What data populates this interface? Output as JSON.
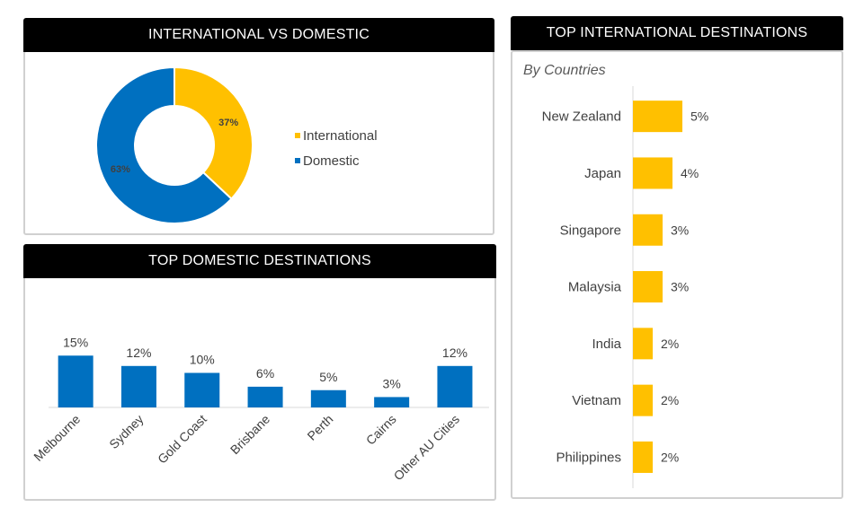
{
  "colors": {
    "international": "#FFC000",
    "domestic": "#0070C0",
    "header_bg": "#000000",
    "border": "#d0d0d0"
  },
  "panels": {
    "donut": {
      "title": "INTERNATIONAL VS DOMESTIC"
    },
    "domestic": {
      "title": "TOP DOMESTIC DESTINATIONS"
    },
    "international": {
      "title": "TOP INTERNATIONAL DESTINATIONS",
      "subtitle": "By Countries"
    }
  },
  "chart_data": [
    {
      "type": "pie",
      "subtype": "donut",
      "categories": [
        "International",
        "Domestic"
      ],
      "values": [
        37,
        63
      ],
      "data_labels": [
        "37%",
        "63%"
      ],
      "colors": [
        "#FFC000",
        "#0070C0"
      ],
      "legend": "right"
    },
    {
      "type": "bar",
      "orientation": "vertical",
      "categories": [
        "Melbourne",
        "Sydney",
        "Gold Coast",
        "Brisbane",
        "Perth",
        "Cairns",
        "Other AU Cities"
      ],
      "values": [
        15,
        12,
        10,
        6,
        5,
        3,
        12
      ],
      "data_labels": [
        "15%",
        "12%",
        "10%",
        "6%",
        "5%",
        "3%",
        "12%"
      ],
      "ylim": [
        0,
        20
      ],
      "color": "#0070C0",
      "grid": false
    },
    {
      "type": "bar",
      "orientation": "horizontal",
      "categories": [
        "New Zealand",
        "Japan",
        "Singapore",
        "Malaysia",
        "India",
        "Vietnam",
        "Philippines"
      ],
      "values": [
        5,
        4,
        3,
        3,
        2,
        2,
        2
      ],
      "data_labels": [
        "5%",
        "4%",
        "3%",
        "3%",
        "2%",
        "2%",
        "2%"
      ],
      "xlim": [
        0,
        10
      ],
      "color": "#FFC000",
      "grid": false
    }
  ]
}
